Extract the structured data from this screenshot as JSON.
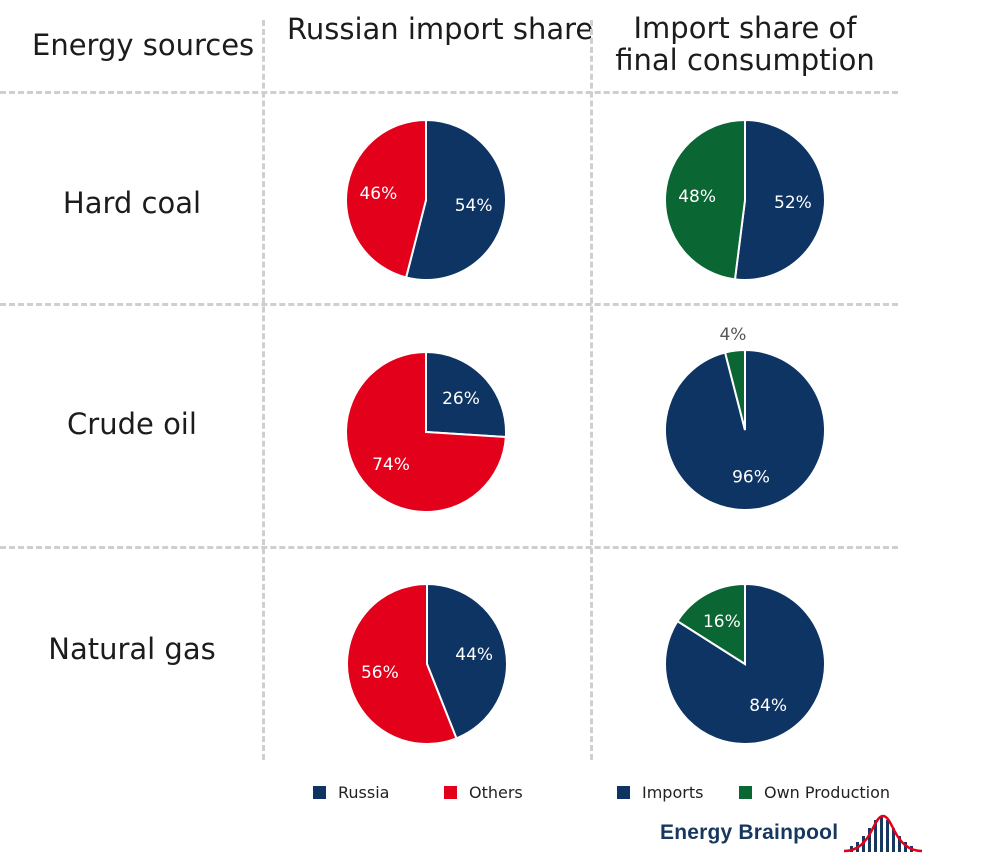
{
  "headers": {
    "energy_sources": "Energy sources",
    "russian_import_share": "Russian import share",
    "import_share_final": "Import share of final consumption"
  },
  "rows": [
    {
      "label": "Hard coal"
    },
    {
      "label": "Crude oil"
    },
    {
      "label": "Natural gas"
    }
  ],
  "colors": {
    "russia": "#0d3463",
    "others": "#e2001a",
    "imports": "#0d3463",
    "own_production": "#0a6632"
  },
  "legend": {
    "russia": "Russia",
    "others": "Others",
    "imports": "Imports",
    "own_production": "Own Production"
  },
  "chart_data": [
    {
      "type": "pie",
      "title": "Russian import share",
      "row": "Hard coal",
      "slices": [
        {
          "name": "Russia",
          "value": 54,
          "label": "54%",
          "color": "#0d3463"
        },
        {
          "name": "Others",
          "value": 46,
          "label": "46%",
          "color": "#e2001a"
        }
      ]
    },
    {
      "type": "pie",
      "title": "Import share of final consumption",
      "row": "Hard coal",
      "slices": [
        {
          "name": "Imports",
          "value": 52,
          "label": "52%",
          "color": "#0d3463"
        },
        {
          "name": "Own Production",
          "value": 48,
          "label": "48%",
          "color": "#0a6632"
        }
      ]
    },
    {
      "type": "pie",
      "title": "Russian import share",
      "row": "Crude oil",
      "slices": [
        {
          "name": "Russia",
          "value": 26,
          "label": "26%",
          "color": "#0d3463"
        },
        {
          "name": "Others",
          "value": 74,
          "label": "74%",
          "color": "#e2001a"
        }
      ]
    },
    {
      "type": "pie",
      "title": "Import share of final consumption",
      "row": "Crude oil",
      "slices": [
        {
          "name": "Imports",
          "value": 96,
          "label": "96%",
          "color": "#0d3463"
        },
        {
          "name": "Own Production",
          "value": 4,
          "label": "4%",
          "color": "#0a6632",
          "label_outside": true
        }
      ]
    },
    {
      "type": "pie",
      "title": "Russian import share",
      "row": "Natural gas",
      "slices": [
        {
          "name": "Russia",
          "value": 44,
          "label": "44%",
          "color": "#0d3463"
        },
        {
          "name": "Others",
          "value": 56,
          "label": "56%",
          "color": "#e2001a"
        }
      ]
    },
    {
      "type": "pie",
      "title": "Import share of final consumption",
      "row": "Natural gas",
      "slices": [
        {
          "name": "Imports",
          "value": 84,
          "label": "84%",
          "color": "#0d3463"
        },
        {
          "name": "Own Production",
          "value": 16,
          "label": "16%",
          "color": "#0a6632"
        }
      ]
    }
  ],
  "branding": {
    "logo_text": "Energy Brainpool",
    "logo_colors": [
      "#17375e",
      "#e2001a"
    ]
  }
}
